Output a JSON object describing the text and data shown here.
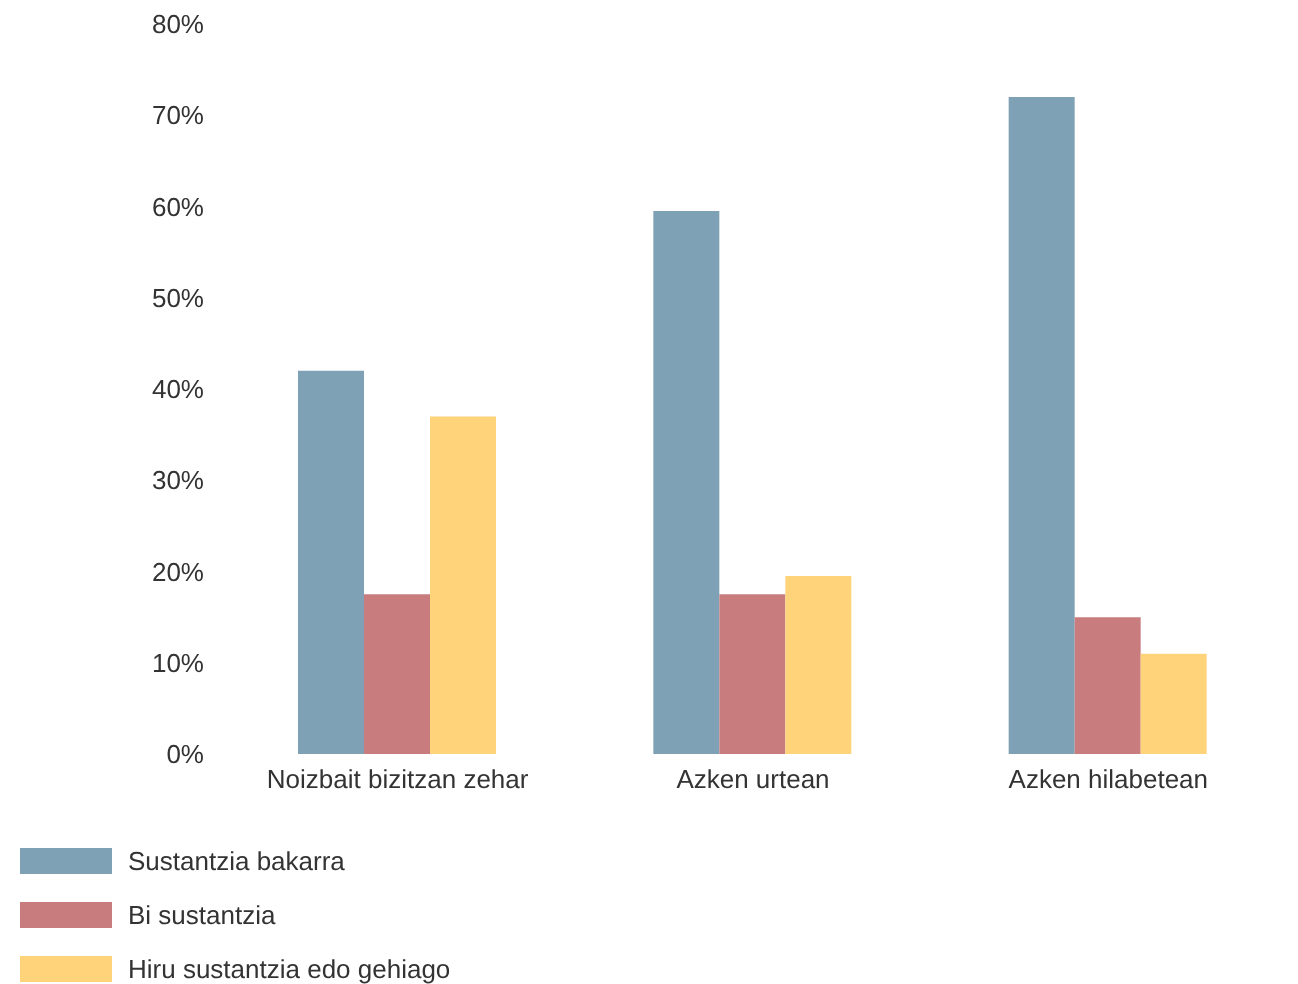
{
  "chart_data": {
    "type": "bar",
    "categories": [
      "Noizbait bizitzan zehar",
      "Azken urtean",
      "Azken hilabetean"
    ],
    "series": [
      {
        "name": "Sustantzia bakarra",
        "color": "#7fa1b5",
        "values": [
          42,
          59.5,
          72
        ]
      },
      {
        "name": "Bi sustantzia",
        "color": "#c97c7e",
        "values": [
          17.5,
          17.5,
          15
        ]
      },
      {
        "name": "Hiru sustantzia edo gehiago",
        "color": "#fed37a",
        "values": [
          37,
          19.5,
          11
        ]
      }
    ],
    "ylim": [
      0,
      80
    ],
    "yticks": [
      {
        "value": 0,
        "label": "0%"
      },
      {
        "value": 10,
        "label": "10%"
      },
      {
        "value": 20,
        "label": "20%"
      },
      {
        "value": 30,
        "label": "30%"
      },
      {
        "value": 40,
        "label": "40%"
      },
      {
        "value": 50,
        "label": "50%"
      },
      {
        "value": 60,
        "label": "60%"
      },
      {
        "value": 70,
        "label": "70%"
      },
      {
        "value": 80,
        "label": "80%"
      }
    ],
    "grid": false,
    "legend": "bottom left"
  }
}
